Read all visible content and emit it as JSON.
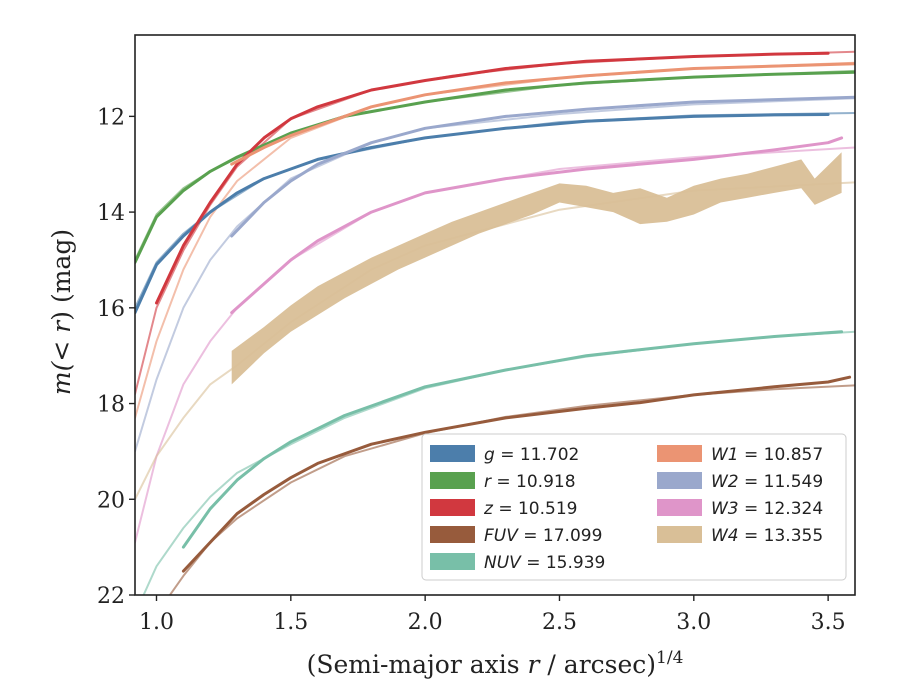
{
  "chart_data": {
    "type": "line",
    "xlabel_main": "(Semi-major axis ",
    "xlabel_var": "r",
    "xlabel_rest": " / arcsec)",
    "xlabel_exp": "1/4",
    "ylabel_prefix": "m(< ",
    "ylabel_var": "r",
    "ylabel_suffix": ") (mag)",
    "xlim": [
      0.92,
      3.6
    ],
    "ylim": [
      22,
      10.3
    ],
    "y_inverted": true,
    "xticks": [
      1.0,
      1.5,
      2.0,
      2.5,
      3.0,
      3.5
    ],
    "xtick_labels": [
      "1.0",
      "1.5",
      "2.0",
      "2.5",
      "3.0",
      "3.5"
    ],
    "yticks": [
      12,
      14,
      16,
      18,
      20,
      22
    ],
    "ytick_labels": [
      "12",
      "14",
      "16",
      "18",
      "20",
      "22"
    ],
    "grid": false,
    "legend_position": "lower-right",
    "series": [
      {
        "band": "g",
        "value": "11.702",
        "color": "#4c7eab",
        "data_x": [
          0.92,
          1.0,
          1.1,
          1.2,
          1.3,
          1.4,
          1.5,
          1.6,
          1.8,
          2.0,
          2.3,
          2.6,
          3.0,
          3.3,
          3.5
        ],
        "data_y": [
          16.1,
          15.1,
          14.5,
          14.0,
          13.6,
          13.3,
          13.1,
          12.9,
          12.65,
          12.45,
          12.25,
          12.1,
          12.0,
          11.97,
          11.96
        ],
        "model_x": [
          0.92,
          1.0,
          1.1,
          1.2,
          1.4,
          1.6,
          2.0,
          2.5,
          3.0,
          3.6
        ],
        "model_y": [
          16.0,
          15.05,
          14.45,
          14.0,
          13.3,
          12.9,
          12.45,
          12.12,
          11.98,
          11.93
        ]
      },
      {
        "band": "r",
        "value": "10.918",
        "color": "#59a14f",
        "data_x": [
          0.92,
          1.0,
          1.1,
          1.2,
          1.3,
          1.4,
          1.5,
          1.7,
          2.0,
          2.3,
          2.6,
          3.0,
          3.3,
          3.6
        ],
        "data_y": [
          15.05,
          14.1,
          13.55,
          13.15,
          12.85,
          12.6,
          12.35,
          12.0,
          11.7,
          11.45,
          11.3,
          11.18,
          11.12,
          11.08
        ],
        "model_x": [
          0.92,
          1.0,
          1.1,
          1.2,
          1.4,
          1.7,
          2.0,
          2.5,
          3.0,
          3.6
        ],
        "model_y": [
          15.0,
          14.05,
          13.5,
          13.15,
          12.6,
          12.0,
          11.7,
          11.35,
          11.18,
          11.05
        ]
      },
      {
        "band": "z",
        "value": "10.519",
        "color": "#d1383f",
        "data_x": [
          1.0,
          1.1,
          1.2,
          1.3,
          1.4,
          1.5,
          1.6,
          1.8,
          2.0,
          2.3,
          2.6,
          3.0,
          3.3,
          3.5
        ],
        "data_y": [
          15.9,
          14.7,
          13.8,
          13.0,
          12.45,
          12.05,
          11.8,
          11.45,
          11.25,
          11.0,
          10.85,
          10.75,
          10.7,
          10.68
        ],
        "model_x": [
          0.92,
          1.0,
          1.1,
          1.2,
          1.3,
          1.5,
          1.8,
          2.1,
          2.5,
          3.0,
          3.6
        ],
        "model_y": [
          17.8,
          16.0,
          14.8,
          13.85,
          13.05,
          12.05,
          11.45,
          11.15,
          10.9,
          10.75,
          10.65
        ]
      },
      {
        "band": "FUV",
        "value": "17.099",
        "color": "#975b3c",
        "data_x": [
          1.1,
          1.2,
          1.3,
          1.4,
          1.5,
          1.6,
          1.8,
          2.0,
          2.3,
          2.6,
          2.8,
          3.0,
          3.3,
          3.5,
          3.58
        ],
        "data_y": [
          21.5,
          20.9,
          20.3,
          19.9,
          19.55,
          19.25,
          18.85,
          18.6,
          18.3,
          18.1,
          17.98,
          17.82,
          17.65,
          17.55,
          17.45
        ],
        "model_x": [
          1.0,
          1.1,
          1.2,
          1.3,
          1.5,
          1.7,
          2.0,
          2.3,
          2.6,
          3.0,
          3.3,
          3.6
        ],
        "model_y": [
          22.4,
          21.6,
          20.9,
          20.4,
          19.65,
          19.1,
          18.62,
          18.28,
          18.05,
          17.82,
          17.7,
          17.62
        ]
      },
      {
        "band": "NUV",
        "value": "15.939",
        "color": "#78bfa8",
        "data_x": [
          1.1,
          1.2,
          1.3,
          1.4,
          1.5,
          1.7,
          2.0,
          2.3,
          2.6,
          3.0,
          3.3,
          3.55
        ],
        "data_y": [
          21.0,
          20.2,
          19.6,
          19.15,
          18.8,
          18.25,
          17.65,
          17.3,
          17.0,
          16.75,
          16.6,
          16.5
        ],
        "model_x": [
          0.92,
          1.0,
          1.1,
          1.2,
          1.3,
          1.5,
          1.7,
          2.0,
          2.3,
          2.6,
          3.0,
          3.3,
          3.6
        ],
        "model_y": [
          22.4,
          21.4,
          20.6,
          19.95,
          19.45,
          18.85,
          18.3,
          17.68,
          17.3,
          17.02,
          16.75,
          16.6,
          16.5
        ]
      },
      {
        "band": "W1",
        "value": "10.857",
        "color": "#eb9473",
        "data_x": [
          1.28,
          1.4,
          1.5,
          1.6,
          1.8,
          2.0,
          2.3,
          2.6,
          3.0,
          3.3,
          3.6
        ],
        "data_y": [
          13.0,
          12.65,
          12.4,
          12.2,
          11.8,
          11.55,
          11.3,
          11.15,
          11.0,
          10.95,
          10.9
        ],
        "model_x": [
          0.92,
          1.0,
          1.1,
          1.2,
          1.3,
          1.5,
          1.8,
          2.0,
          2.5,
          3.0,
          3.6
        ],
        "model_y": [
          18.3,
          16.7,
          15.2,
          14.1,
          13.35,
          12.45,
          11.8,
          11.55,
          11.2,
          11.0,
          10.88
        ]
      },
      {
        "band": "W2",
        "value": "11.549",
        "color": "#9aa8cc",
        "data_x": [
          1.28,
          1.4,
          1.5,
          1.6,
          1.8,
          2.0,
          2.3,
          2.6,
          3.0,
          3.3,
          3.6
        ],
        "data_y": [
          14.5,
          13.8,
          13.35,
          13.0,
          12.55,
          12.25,
          12.0,
          11.85,
          11.7,
          11.65,
          11.6
        ],
        "model_x": [
          0.92,
          1.0,
          1.1,
          1.2,
          1.3,
          1.5,
          1.8,
          2.0,
          2.5,
          3.0,
          3.6
        ],
        "model_y": [
          19.0,
          17.5,
          16.0,
          15.0,
          14.3,
          13.3,
          12.55,
          12.25,
          11.95,
          11.75,
          11.62
        ]
      },
      {
        "band": "W3",
        "value": "12.324",
        "color": "#df95c9",
        "data_x": [
          1.28,
          1.4,
          1.5,
          1.6,
          1.8,
          2.0,
          2.3,
          2.6,
          3.0,
          3.3,
          3.5,
          3.55
        ],
        "data_y": [
          16.1,
          15.5,
          15.0,
          14.6,
          14.0,
          13.6,
          13.3,
          13.1,
          12.9,
          12.7,
          12.55,
          12.45
        ],
        "model_x": [
          0.92,
          1.0,
          1.1,
          1.2,
          1.3,
          1.5,
          1.8,
          2.0,
          2.5,
          3.0,
          3.6
        ],
        "model_y": [
          20.9,
          19.1,
          17.6,
          16.7,
          16.0,
          15.0,
          14.0,
          13.6,
          13.1,
          12.85,
          12.65
        ]
      },
      {
        "band": "W4",
        "value": "13.355",
        "color": "#d9bf97",
        "band_x": [
          1.28,
          1.4,
          1.5,
          1.6,
          1.7,
          1.8,
          1.9,
          2.0,
          2.1,
          2.2,
          2.3,
          2.4,
          2.5,
          2.6,
          2.7,
          2.8,
          2.9,
          3.0,
          3.1,
          3.2,
          3.3,
          3.4,
          3.45,
          3.55
        ],
        "band_upper": [
          16.9,
          16.4,
          15.95,
          15.55,
          15.25,
          14.95,
          14.7,
          14.45,
          14.2,
          14.0,
          13.8,
          13.6,
          13.4,
          13.45,
          13.6,
          13.5,
          13.7,
          13.45,
          13.3,
          13.2,
          13.05,
          12.9,
          13.3,
          12.75
        ],
        "band_lower": [
          17.6,
          16.95,
          16.5,
          16.15,
          15.8,
          15.5,
          15.2,
          14.95,
          14.7,
          14.45,
          14.25,
          14.05,
          13.8,
          13.9,
          14.0,
          14.25,
          14.2,
          14.05,
          13.8,
          13.7,
          13.6,
          13.5,
          13.85,
          13.6
        ],
        "model_x": [
          0.92,
          1.0,
          1.1,
          1.2,
          1.3,
          1.5,
          1.8,
          2.0,
          2.5,
          3.0,
          3.6
        ],
        "model_y": [
          20.0,
          19.1,
          18.3,
          17.6,
          17.2,
          16.3,
          15.2,
          14.7,
          13.95,
          13.55,
          13.38
        ]
      }
    ]
  }
}
